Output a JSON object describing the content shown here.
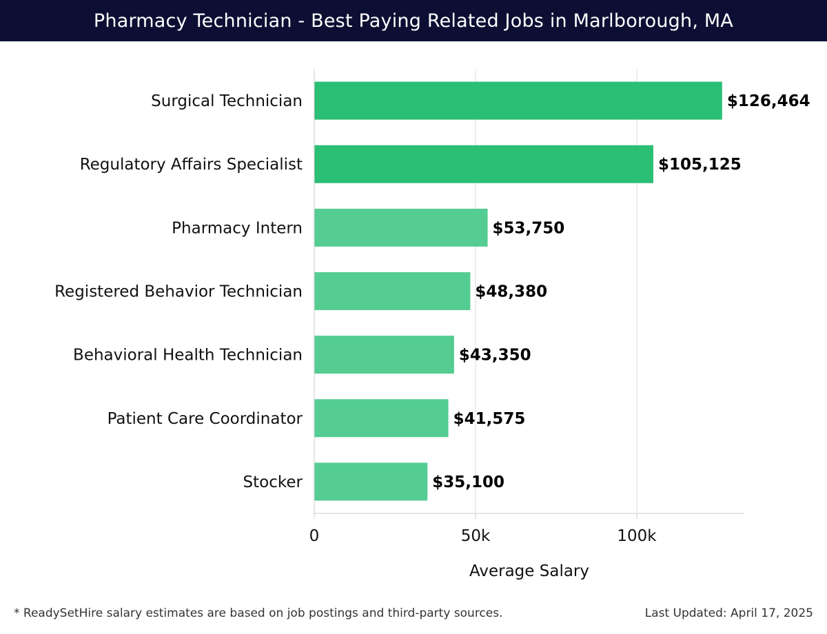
{
  "header": {
    "title": "Pharmacy Technician - Best Paying Related Jobs in Marlborough, MA"
  },
  "footer": {
    "note": "* ReadySetHire salary estimates are based on job postings and third-party sources.",
    "updated": "Last Updated: April 17, 2025"
  },
  "chart_data": {
    "type": "bar",
    "orientation": "horizontal",
    "title": "Pharmacy Technician - Best Paying Related Jobs in Marlborough, MA",
    "categories": [
      "Surgical Technician",
      "Regulatory Affairs Specialist",
      "Pharmacy Intern",
      "Registered Behavior Technician",
      "Behavioral Health Technician",
      "Patient Care Coordinator",
      "Stocker"
    ],
    "values": [
      126464,
      105125,
      53750,
      48380,
      43350,
      41575,
      35100
    ],
    "value_labels": [
      "$126,464",
      "$105,125",
      "$53,750",
      "$48,380",
      "$43,350",
      "$41,575",
      "$35,100"
    ],
    "xlabel": "Average Salary",
    "ylabel": "",
    "xlim": [
      0,
      133000
    ],
    "xticks": [
      0,
      50000,
      100000
    ],
    "xtick_labels": [
      "0",
      "50k",
      "100k"
    ],
    "grid": true,
    "colors": {
      "top": "#2bbf76",
      "rest": "#54cc92",
      "grid": "#dddddd",
      "axis": "#cccccc"
    }
  }
}
